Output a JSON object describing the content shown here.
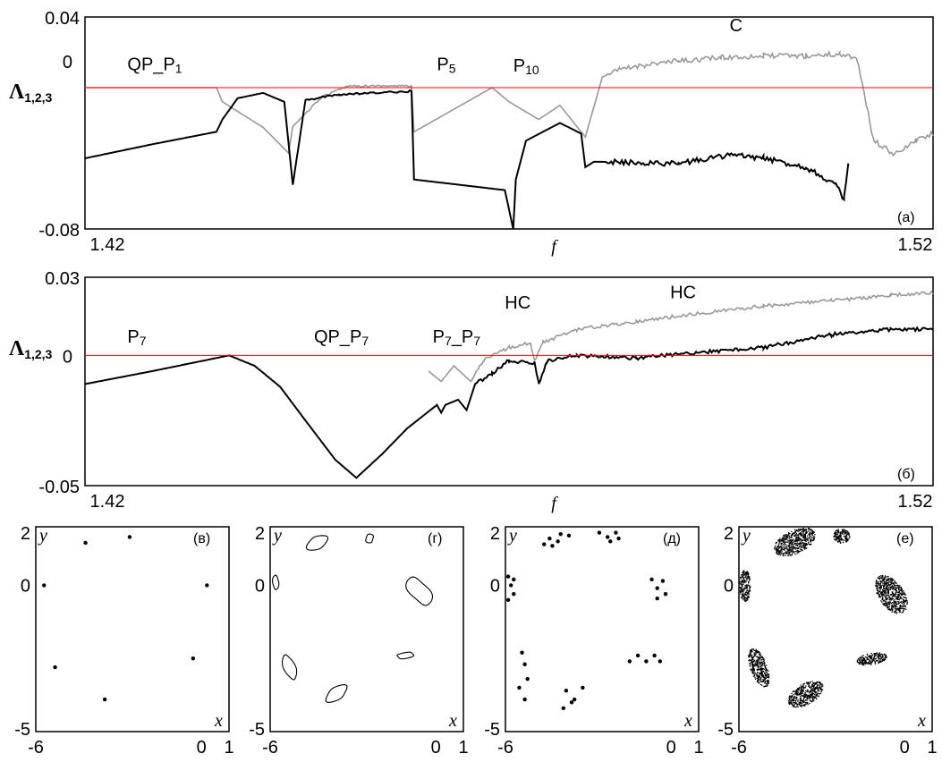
{
  "chart_data": [
    {
      "type": "line",
      "panel": "(a)",
      "xlabel": "f",
      "ylabel": "Λ",
      "ylabel_sub": "1,2,3",
      "xlim": [
        1.42,
        1.52
      ],
      "ylim": [
        -0.08,
        0.04
      ],
      "xticks": [
        "1.42",
        "1.52"
      ],
      "yticks": [
        "0.04",
        "0",
        "-0.08"
      ],
      "zero_line": 0,
      "annotations": [
        {
          "text": "QP_P",
          "sub": "1",
          "x": 1.425,
          "y": 0.01
        },
        {
          "text": "P",
          "sub": "5",
          "x": 1.4615,
          "y": 0.01
        },
        {
          "text": "P",
          "sub": "10",
          "x": 1.4705,
          "y": 0.009
        },
        {
          "text": "C",
          "sub": "",
          "x": 1.496,
          "y": 0.032
        }
      ],
      "series": [
        {
          "color": "#999999",
          "x": [
            1.42,
            1.4355,
            1.4362,
            1.441,
            1.444,
            1.4445,
            1.448,
            1.451,
            1.4585,
            1.4588,
            1.468,
            1.47,
            1.4735,
            1.476,
            1.479,
            1.481,
            1.483,
            1.486,
            1.49,
            1.495,
            1.5,
            1.505,
            1.509,
            1.511,
            1.513,
            1.5155,
            1.518,
            1.52
          ],
          "y": [
            0,
            0,
            -0.008,
            -0.0225,
            -0.037,
            -0.022,
            -0.005,
            0.001,
            0.001,
            -0.025,
            0.0,
            -0.008,
            -0.018,
            -0.01,
            -0.028,
            0.006,
            0.01,
            0.013,
            0.015,
            0.017,
            0.018,
            0.018,
            0.019,
            0.017,
            -0.03,
            -0.038,
            -0.03,
            -0.026
          ]
        },
        {
          "color": "#000000",
          "x": [
            1.42,
            1.428,
            1.4355,
            1.4362,
            1.438,
            1.441,
            1.4435,
            1.4445,
            1.446,
            1.45,
            1.4585,
            1.4588,
            1.4695,
            1.4705,
            1.4708,
            1.472,
            1.474,
            1.476,
            1.4785,
            1.479,
            1.48,
            1.481,
            1.49,
            1.496,
            1.5,
            1.505,
            1.5085,
            1.5095,
            1.51,
            1.51
          ],
          "y": [
            -0.04,
            -0.032,
            -0.025,
            -0.018,
            -0.006,
            -0.003,
            -0.008,
            -0.055,
            -0.007,
            -0.004,
            -0.002,
            -0.052,
            -0.058,
            -0.08,
            -0.052,
            -0.03,
            -0.025,
            -0.02,
            -0.026,
            -0.045,
            -0.042,
            -0.042,
            -0.043,
            -0.038,
            -0.04,
            -0.045,
            -0.055,
            -0.063,
            -0.044,
            -0.044
          ]
        }
      ]
    },
    {
      "type": "line",
      "panel": "(б)",
      "xlabel": "f",
      "ylabel": "Λ",
      "ylabel_sub": "1,2,3",
      "xlim": [
        1.42,
        1.52
      ],
      "ylim": [
        -0.05,
        0.03
      ],
      "xticks": [
        "1.42",
        "1.52"
      ],
      "yticks": [
        "0.03",
        "0",
        "-0.05"
      ],
      "zero_line": 0,
      "annotations": [
        {
          "text": "P",
          "sub": "7",
          "x": 1.425,
          "y": 0.005
        },
        {
          "text": "QP_P",
          "sub": "7",
          "x": 1.447,
          "y": 0.005
        },
        {
          "text": "P",
          "sub": "7",
          "sub_label": "P7_P7",
          "x": 1.461,
          "y": 0.005
        },
        {
          "text": "HC",
          "sub": "",
          "x": 1.4695,
          "y": 0.018
        },
        {
          "text": "HC",
          "sub": "",
          "x": 1.489,
          "y": 0.022
        }
      ],
      "series": [
        {
          "color": "#999999",
          "x": [
            1.4605,
            1.462,
            1.4635,
            1.4655,
            1.467,
            1.47,
            1.4725,
            1.473,
            1.474,
            1.478,
            1.485,
            1.492,
            1.5,
            1.508,
            1.515,
            1.52
          ],
          "y": [
            -0.006,
            -0.01,
            -0.004,
            -0.01,
            -0.002,
            0.003,
            0.005,
            -0.002,
            0.005,
            0.01,
            0.013,
            0.016,
            0.019,
            0.021,
            0.023,
            0.024
          ],
          "start_x": 1.4605
        },
        {
          "color": "#000000",
          "x": [
            1.42,
            1.428,
            1.437,
            1.44,
            1.443,
            1.446,
            1.4495,
            1.452,
            1.455,
            1.458,
            1.4615,
            1.462,
            1.4625,
            1.464,
            1.465,
            1.466,
            1.468,
            1.47,
            1.473,
            1.4735,
            1.4745,
            1.478,
            1.485,
            1.492,
            1.5,
            1.508,
            1.515,
            1.52
          ],
          "y": [
            -0.011,
            -0.006,
            0.0,
            -0.004,
            -0.012,
            -0.025,
            -0.04,
            -0.047,
            -0.038,
            -0.028,
            -0.019,
            -0.022,
            -0.019,
            -0.017,
            -0.021,
            -0.011,
            -0.007,
            -0.002,
            -0.003,
            -0.011,
            -0.002,
            0.0,
            -0.001,
            0.001,
            0.003,
            0.008,
            0.01,
            0.01
          ]
        }
      ]
    },
    {
      "type": "scatter",
      "panel": "(в)",
      "xlabel": "x",
      "ylabel": "y",
      "xlim": [
        -6,
        1
      ],
      "ylim": [
        -5,
        2
      ],
      "xticks": [
        "-6",
        "0",
        "1"
      ],
      "yticks": [
        "2",
        "0",
        "-5"
      ],
      "style": "points",
      "points": [
        [
          -4.2,
          1.45
        ],
        [
          -2.6,
          1.65
        ],
        [
          -5.7,
          0.0
        ],
        [
          0.2,
          0.0
        ],
        [
          -5.3,
          -2.8
        ],
        [
          -0.3,
          -2.5
        ],
        [
          -3.5,
          -3.9
        ]
      ]
    },
    {
      "type": "scatter",
      "panel": "(г)",
      "xlabel": "x",
      "ylabel": "y",
      "xlim": [
        -6,
        1
      ],
      "ylim": [
        -5,
        2
      ],
      "xticks": [
        "-6",
        "0",
        "1"
      ],
      "yticks": [
        "2",
        "0",
        "-5"
      ],
      "style": "closed-curves",
      "loops": [
        {
          "cx": -4.3,
          "cy": 1.45,
          "rx": 0.35,
          "ry": 0.22,
          "rot": -25
        },
        {
          "cx": -2.4,
          "cy": 1.6,
          "rx": 0.15,
          "ry": 0.15,
          "rot": 0
        },
        {
          "cx": -5.8,
          "cy": 0.1,
          "rx": 0.1,
          "ry": 0.25,
          "rot": 0
        },
        {
          "cx": -0.6,
          "cy": -0.2,
          "rx": 0.35,
          "ry": 0.55,
          "rot": -35
        },
        {
          "cx": -5.3,
          "cy": -2.8,
          "rx": 0.18,
          "ry": 0.45,
          "rot": -20
        },
        {
          "cx": -1.1,
          "cy": -2.4,
          "rx": 0.35,
          "ry": 0.1,
          "rot": -10
        },
        {
          "cx": -3.6,
          "cy": -3.7,
          "rx": 0.4,
          "ry": 0.22,
          "rot": -30
        }
      ]
    },
    {
      "type": "scatter",
      "panel": "(д)",
      "xlabel": "x",
      "ylabel": "y",
      "xlim": [
        -6,
        1
      ],
      "ylim": [
        -5,
        2
      ],
      "xticks": [
        "-6",
        "0",
        "1"
      ],
      "yticks": [
        "2",
        "0",
        "-5"
      ],
      "style": "point-clusters",
      "points": [
        [
          -4.6,
          1.4
        ],
        [
          -4.4,
          1.6
        ],
        [
          -4.1,
          1.5
        ],
        [
          -4.0,
          1.75
        ],
        [
          -4.3,
          1.35
        ],
        [
          -3.7,
          1.7
        ],
        [
          -2.6,
          1.8
        ],
        [
          -2.3,
          1.65
        ],
        [
          -2.0,
          1.8
        ],
        [
          -2.2,
          1.5
        ],
        [
          -1.9,
          1.6
        ],
        [
          -5.9,
          0.3
        ],
        [
          -5.8,
          0.0
        ],
        [
          -5.7,
          -0.3
        ],
        [
          -5.9,
          -0.5
        ],
        [
          -5.7,
          0.2
        ],
        [
          -0.7,
          0.2
        ],
        [
          -0.5,
          -0.1
        ],
        [
          -0.3,
          0.15
        ],
        [
          -0.2,
          -0.3
        ],
        [
          -0.5,
          -0.45
        ],
        [
          -5.4,
          -2.3
        ],
        [
          -5.3,
          -2.7
        ],
        [
          -5.2,
          -3.2
        ],
        [
          -5.5,
          -3.5
        ],
        [
          -5.3,
          -3.9
        ],
        [
          -1.5,
          -2.6
        ],
        [
          -1.2,
          -2.4
        ],
        [
          -0.9,
          -2.6
        ],
        [
          -0.6,
          -2.4
        ],
        [
          -0.4,
          -2.6
        ],
        [
          -3.8,
          -3.6
        ],
        [
          -3.5,
          -3.9
        ],
        [
          -3.2,
          -3.5
        ],
        [
          -3.9,
          -4.2
        ],
        [
          -3.6,
          -4.0
        ]
      ]
    },
    {
      "type": "scatter",
      "panel": "(е)",
      "xlabel": "x",
      "ylabel": "y",
      "xlim": [
        -6,
        1
      ],
      "ylim": [
        -5,
        2
      ],
      "xticks": [
        "-6",
        "0",
        "1"
      ],
      "yticks": [
        "2",
        "0",
        "-5"
      ],
      "style": "dense-regions",
      "regions": [
        {
          "cx": -4.0,
          "cy": 1.5,
          "rx": 0.8,
          "ry": 0.4,
          "rot": -25
        },
        {
          "cx": -2.3,
          "cy": 1.7,
          "rx": 0.3,
          "ry": 0.25,
          "rot": 0
        },
        {
          "cx": -5.8,
          "cy": 0.0,
          "rx": 0.2,
          "ry": 0.55,
          "rot": 0
        },
        {
          "cx": -0.5,
          "cy": -0.3,
          "rx": 0.45,
          "ry": 0.75,
          "rot": -35
        },
        {
          "cx": -5.3,
          "cy": -2.8,
          "rx": 0.3,
          "ry": 0.7,
          "rot": -20
        },
        {
          "cx": -1.2,
          "cy": -2.5,
          "rx": 0.55,
          "ry": 0.2,
          "rot": -10
        },
        {
          "cx": -3.6,
          "cy": -3.7,
          "rx": 0.7,
          "ry": 0.35,
          "rot": -30
        }
      ]
    }
  ]
}
